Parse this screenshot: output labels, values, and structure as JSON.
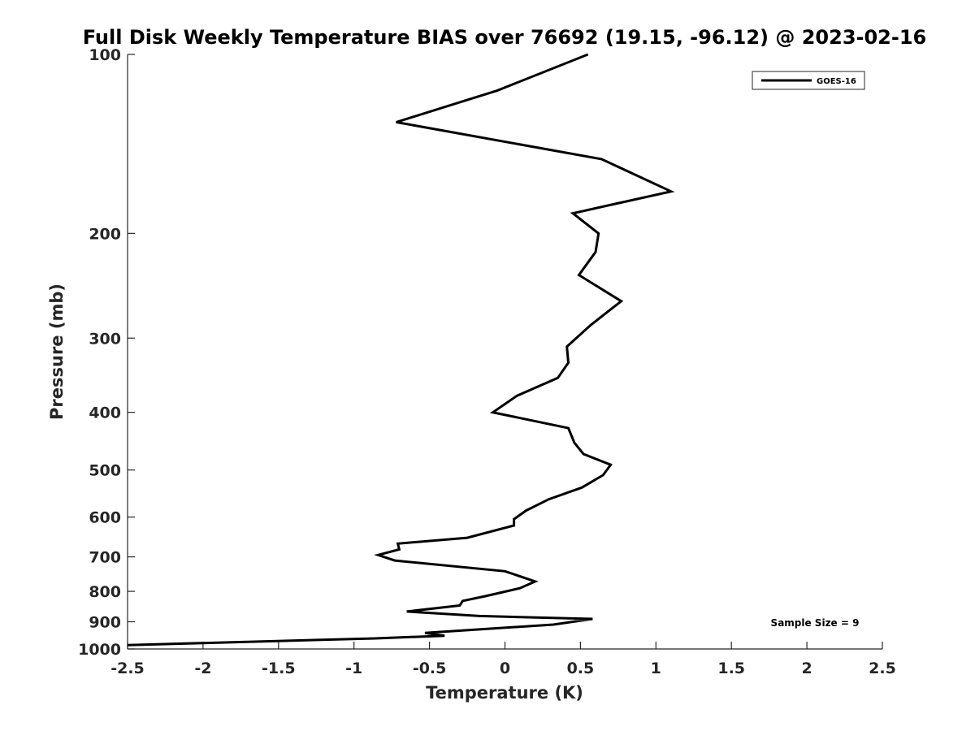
{
  "chart_data": {
    "type": "line",
    "title": "Full Disk Weekly Temperature BIAS over 76692 (19.15, -96.12) @ 2023-02-16",
    "xlabel": "Temperature (K)",
    "ylabel": "Pressure (mb)",
    "xlim": [
      -2.5,
      2.5
    ],
    "ylim": [
      100,
      1000
    ],
    "y_scale": "log",
    "y_reversed": true,
    "grid": false,
    "x_ticks": [
      "-2.5",
      "-2",
      "-1.5",
      "-1",
      "-0.5",
      "0",
      "0.5",
      "1",
      "1.5",
      "2",
      "2.5"
    ],
    "y_ticks": [
      "100",
      "200",
      "300",
      "400",
      "500",
      "600",
      "700",
      "800",
      "900",
      "1000"
    ],
    "legend": {
      "position": "top-right",
      "entries": [
        "GOES-16"
      ]
    },
    "annotation": "Sample Size = 9",
    "series": [
      {
        "name": "GOES-16",
        "color": "#000000",
        "x": [
          0.55,
          -0.05,
          -0.72,
          0.64,
          1.1,
          0.45,
          0.62,
          0.6,
          0.49,
          0.77,
          0.57,
          0.41,
          0.42,
          0.35,
          0.08,
          -0.08,
          0.42,
          0.46,
          0.52,
          0.7,
          0.65,
          0.51,
          0.29,
          0.14,
          0.06,
          0.06,
          -0.25,
          -0.71,
          -0.7,
          -0.84,
          -0.73,
          0.0,
          0.2,
          0.1,
          -0.13,
          -0.28,
          -0.3,
          -0.65,
          -0.17,
          0.58,
          0.32,
          -0.53,
          -0.4,
          -0.86,
          -2.5
        ],
        "y": [
          100,
          115,
          130,
          150,
          170,
          185,
          200,
          215,
          235,
          260,
          285,
          310,
          330,
          350,
          375,
          400,
          425,
          450,
          470,
          490,
          510,
          535,
          560,
          585,
          605,
          620,
          650,
          665,
          680,
          695,
          710,
          740,
          770,
          790,
          815,
          830,
          845,
          865,
          880,
          890,
          910,
          940,
          950,
          960,
          985
        ]
      }
    ]
  }
}
